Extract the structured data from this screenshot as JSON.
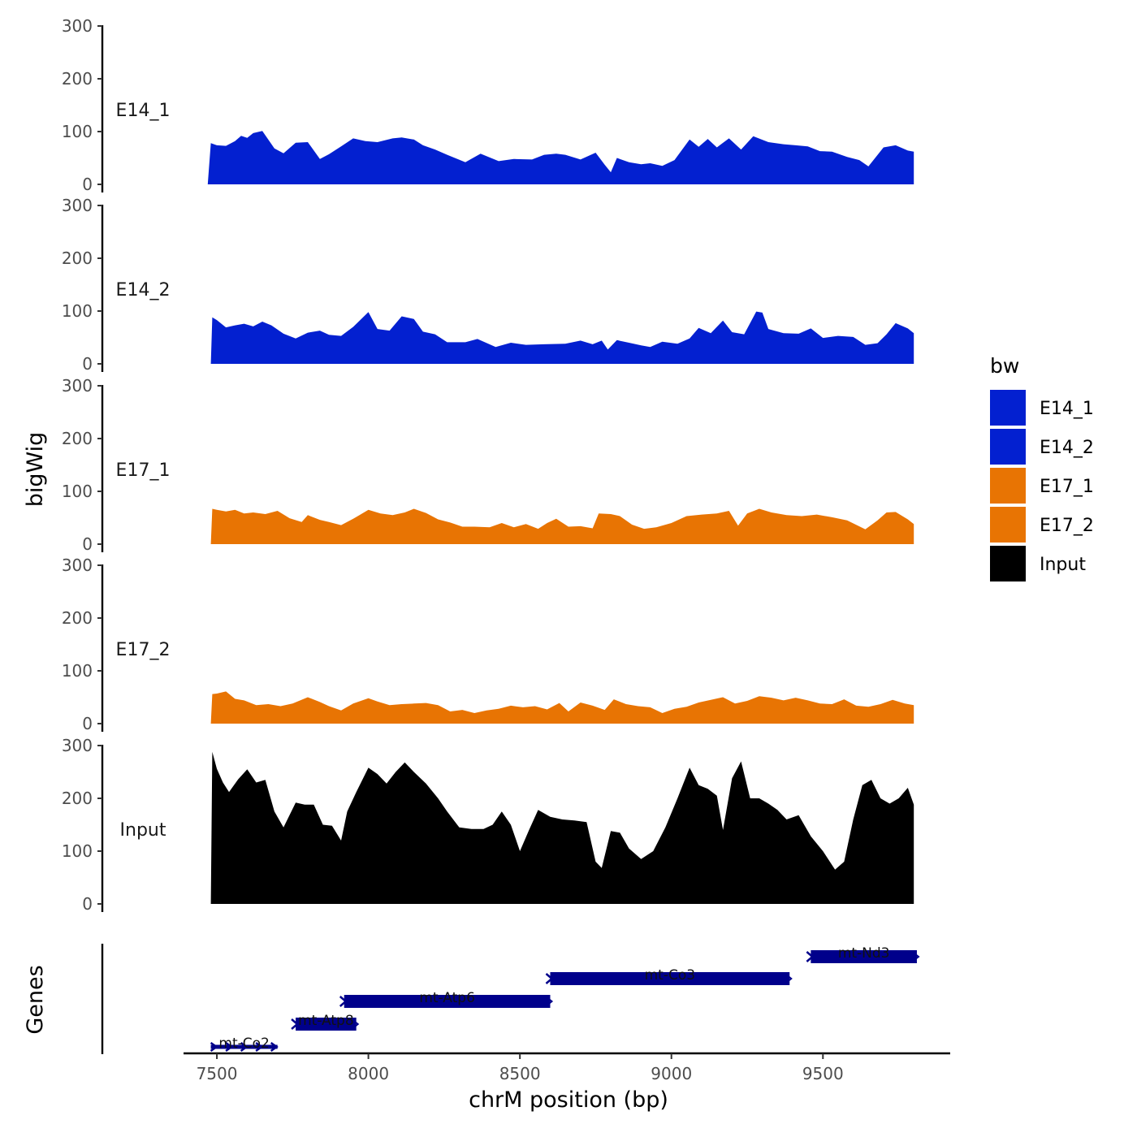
{
  "chart_data": {
    "type": "area",
    "ylabel": "bigWig",
    "xlabel": "chrM position (bp)",
    "xlim": [
      7390,
      9920
    ],
    "xticks": [
      7500,
      8000,
      8500,
      9000,
      9500
    ],
    "xtick_labels": [
      "7500",
      "8000",
      "8500",
      "9000",
      "9500"
    ],
    "ylim": [
      0,
      300
    ],
    "yticks": [
      0,
      100,
      200,
      300
    ],
    "ytick_labels": [
      "0",
      "100",
      "200",
      "300"
    ],
    "tracks": [
      {
        "name": "E14_1",
        "color": "#0320D0",
        "x": [
          7470,
          7480,
          7500,
          7530,
          7560,
          7580,
          7600,
          7620,
          7650,
          7690,
          7720,
          7760,
          7800,
          7840,
          7870,
          7910,
          7950,
          7990,
          8030,
          8080,
          8110,
          8150,
          8180,
          8220,
          8260,
          8320,
          8370,
          8430,
          8480,
          8540,
          8580,
          8620,
          8650,
          8700,
          8750,
          8780,
          8800,
          8820,
          8860,
          8900,
          8930,
          8970,
          9010,
          9060,
          9090,
          9120,
          9150,
          9190,
          9230,
          9270,
          9320,
          9370,
          9410,
          9450,
          9490,
          9530,
          9580,
          9620,
          9650,
          9700,
          9740,
          9780,
          9800
        ],
        "y": [
          0,
          78,
          74,
          73,
          82,
          92,
          88,
          97,
          101,
          68,
          59,
          79,
          80,
          48,
          57,
          72,
          87,
          82,
          80,
          87,
          89,
          85,
          74,
          66,
          56,
          42,
          58,
          44,
          48,
          47,
          56,
          58,
          56,
          47,
          60,
          37,
          23,
          50,
          42,
          38,
          40,
          35,
          46,
          85,
          71,
          86,
          70,
          87,
          66,
          91,
          80,
          76,
          74,
          72,
          63,
          62,
          52,
          46,
          34,
          70,
          74,
          64,
          62
        ]
      },
      {
        "name": "E14_2",
        "color": "#0320D0",
        "x": [
          7480,
          7485,
          7500,
          7530,
          7560,
          7590,
          7620,
          7650,
          7680,
          7720,
          7760,
          7800,
          7840,
          7870,
          7910,
          7950,
          8000,
          8030,
          8070,
          8110,
          8150,
          8180,
          8220,
          8260,
          8320,
          8360,
          8420,
          8470,
          8520,
          8580,
          8650,
          8700,
          8740,
          8770,
          8790,
          8820,
          8860,
          8900,
          8930,
          8970,
          9020,
          9060,
          9090,
          9130,
          9170,
          9200,
          9240,
          9280,
          9300,
          9320,
          9370,
          9420,
          9460,
          9500,
          9550,
          9600,
          9640,
          9680,
          9710,
          9740,
          9780,
          9800
        ],
        "y": [
          0,
          88,
          83,
          69,
          73,
          76,
          71,
          80,
          73,
          57,
          48,
          59,
          63,
          55,
          53,
          70,
          98,
          66,
          63,
          90,
          85,
          61,
          56,
          41,
          41,
          47,
          32,
          40,
          36,
          37,
          38,
          44,
          37,
          44,
          27,
          45,
          40,
          35,
          32,
          42,
          38,
          48,
          68,
          58,
          82,
          60,
          56,
          99,
          97,
          66,
          58,
          57,
          67,
          49,
          53,
          51,
          36,
          39,
          56,
          77,
          67,
          58
        ]
      },
      {
        "name": "E17_1",
        "color": "#E87403",
        "x": [
          7480,
          7485,
          7500,
          7530,
          7560,
          7590,
          7620,
          7660,
          7700,
          7740,
          7780,
          7800,
          7840,
          7870,
          7910,
          7950,
          8000,
          8040,
          8080,
          8120,
          8150,
          8190,
          8230,
          8270,
          8310,
          8350,
          8400,
          8440,
          8480,
          8520,
          8560,
          8590,
          8620,
          8660,
          8700,
          8740,
          8760,
          8800,
          8830,
          8870,
          8910,
          8950,
          9000,
          9050,
          9100,
          9150,
          9190,
          9220,
          9250,
          9290,
          9330,
          9380,
          9430,
          9480,
          9530,
          9580,
          9640,
          9680,
          9710,
          9740,
          9780,
          9800
        ],
        "y": [
          0,
          67,
          65,
          62,
          65,
          58,
          60,
          57,
          63,
          49,
          42,
          55,
          46,
          42,
          36,
          48,
          65,
          58,
          55,
          60,
          67,
          59,
          47,
          41,
          33,
          33,
          32,
          40,
          32,
          38,
          29,
          40,
          48,
          33,
          34,
          30,
          58,
          57,
          53,
          37,
          29,
          32,
          40,
          53,
          56,
          58,
          63,
          35,
          58,
          67,
          60,
          55,
          53,
          56,
          51,
          45,
          28,
          45,
          60,
          61,
          47,
          38
        ]
      },
      {
        "name": "E17_2",
        "color": "#E87403",
        "x": [
          7480,
          7485,
          7500,
          7530,
          7560,
          7590,
          7630,
          7670,
          7710,
          7750,
          7800,
          7840,
          7870,
          7910,
          7950,
          8000,
          8030,
          8070,
          8110,
          8150,
          8190,
          8230,
          8270,
          8310,
          8350,
          8390,
          8430,
          8470,
          8510,
          8550,
          8590,
          8630,
          8660,
          8700,
          8740,
          8780,
          8810,
          8850,
          8890,
          8930,
          8970,
          9010,
          9050,
          9090,
          9130,
          9170,
          9210,
          9250,
          9290,
          9330,
          9370,
          9410,
          9450,
          9490,
          9530,
          9570,
          9610,
          9650,
          9690,
          9730,
          9770,
          9800
        ],
        "y": [
          0,
          56,
          57,
          61,
          47,
          44,
          35,
          37,
          33,
          38,
          50,
          41,
          33,
          25,
          38,
          48,
          42,
          35,
          37,
          38,
          39,
          35,
          23,
          26,
          20,
          25,
          28,
          34,
          31,
          33,
          27,
          39,
          23,
          40,
          34,
          26,
          46,
          37,
          33,
          31,
          20,
          28,
          32,
          40,
          45,
          50,
          38,
          43,
          52,
          49,
          44,
          49,
          44,
          38,
          37,
          46,
          34,
          32,
          37,
          45,
          38,
          35
        ]
      },
      {
        "name": "Input",
        "color": "#000000",
        "x": [
          7480,
          7485,
          7500,
          7520,
          7540,
          7570,
          7600,
          7630,
          7660,
          7690,
          7720,
          7760,
          7790,
          7820,
          7850,
          7880,
          7910,
          7930,
          7960,
          8000,
          8030,
          8060,
          8090,
          8120,
          8150,
          8190,
          8230,
          8260,
          8300,
          8340,
          8380,
          8410,
          8440,
          8470,
          8500,
          8530,
          8560,
          8600,
          8640,
          8680,
          8720,
          8750,
          8770,
          8800,
          8830,
          8860,
          8900,
          8940,
          8980,
          9020,
          9060,
          9090,
          9120,
          9150,
          9170,
          9200,
          9230,
          9260,
          9290,
          9320,
          9350,
          9380,
          9420,
          9460,
          9500,
          9540,
          9570,
          9600,
          9630,
          9660,
          9690,
          9720,
          9750,
          9780,
          9800
        ],
        "y": [
          0,
          288,
          256,
          230,
          212,
          236,
          255,
          230,
          235,
          175,
          145,
          192,
          188,
          188,
          150,
          148,
          120,
          175,
          212,
          258,
          246,
          228,
          250,
          268,
          250,
          228,
          200,
          175,
          145,
          142,
          142,
          150,
          175,
          150,
          100,
          140,
          178,
          165,
          160,
          158,
          155,
          80,
          68,
          138,
          135,
          105,
          85,
          100,
          145,
          200,
          258,
          225,
          218,
          205,
          140,
          238,
          270,
          200,
          200,
          190,
          178,
          160,
          168,
          128,
          100,
          65,
          80,
          160,
          225,
          235,
          200,
          190,
          200,
          220,
          188
        ]
      }
    ],
    "genes": [
      {
        "name": "mt-Co2",
        "start": 7480,
        "end": 7700,
        "row": 0
      },
      {
        "name": "mt-Atp8",
        "start": 7760,
        "end": 7960,
        "row": 1
      },
      {
        "name": "mt-Atp6",
        "start": 7920,
        "end": 8600,
        "row": 2
      },
      {
        "name": "mt-Co3",
        "start": 8600,
        "end": 9390,
        "row": 3
      },
      {
        "name": "mt-Nd3",
        "start": 9460,
        "end": 9810,
        "row": 4
      }
    ],
    "genes_track_label": "Genes",
    "gene_color": "#00008B",
    "legend": {
      "title": "bw",
      "entries": [
        {
          "label": "E14_1",
          "color": "#0320D0"
        },
        {
          "label": "E14_2",
          "color": "#0320D0"
        },
        {
          "label": "E17_1",
          "color": "#E87403"
        },
        {
          "label": "E17_2",
          "color": "#E87403"
        },
        {
          "label": "Input",
          "color": "#000000"
        }
      ]
    }
  }
}
